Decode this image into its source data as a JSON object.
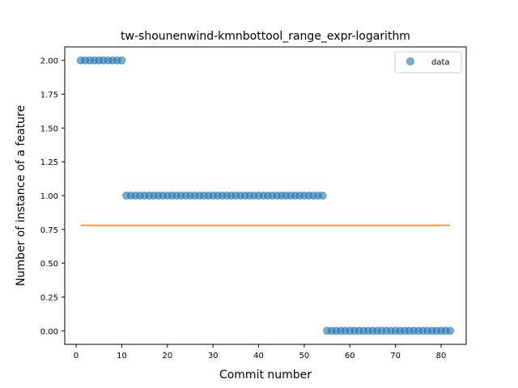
{
  "chart_data": {
    "type": "scatter",
    "title": "tw-shounenwind-kmnbottool_range_expr-logarithm",
    "xlabel": "Commit number",
    "ylabel": "Number of instance of a feature",
    "xlim": [
      -2.5,
      85.5
    ],
    "ylim": [
      -0.1,
      2.1
    ],
    "xticks": [
      0,
      10,
      20,
      30,
      40,
      50,
      60,
      70,
      80
    ],
    "yticks": [
      0.0,
      0.25,
      0.5,
      0.75,
      1.0,
      1.25,
      1.5,
      1.75,
      2.0
    ],
    "ytick_labels": [
      "0.00",
      "0.25",
      "0.50",
      "0.75",
      "1.00",
      "1.25",
      "1.50",
      "1.75",
      "2.00"
    ],
    "grid": false,
    "legend": {
      "position": "top-right",
      "entries": [
        "data"
      ]
    },
    "series": [
      {
        "name": "data",
        "kind": "scatter",
        "color": "#1f77b4",
        "x": [
          1,
          2,
          3,
          4,
          5,
          6,
          7,
          8,
          9,
          10,
          11,
          12,
          13,
          14,
          15,
          16,
          17,
          18,
          19,
          20,
          21,
          22,
          23,
          24,
          25,
          26,
          27,
          28,
          29,
          30,
          31,
          32,
          33,
          34,
          35,
          36,
          37,
          38,
          39,
          40,
          41,
          42,
          43,
          44,
          45,
          46,
          47,
          48,
          49,
          50,
          51,
          52,
          53,
          54,
          55,
          56,
          57,
          58,
          59,
          60,
          61,
          62,
          63,
          64,
          65,
          66,
          67,
          68,
          69,
          70,
          71,
          72,
          73,
          74,
          75,
          76,
          77,
          78,
          79,
          80,
          81,
          82
        ],
        "y": [
          2,
          2,
          2,
          2,
          2,
          2,
          2,
          2,
          2,
          2,
          1,
          1,
          1,
          1,
          1,
          1,
          1,
          1,
          1,
          1,
          1,
          1,
          1,
          1,
          1,
          1,
          1,
          1,
          1,
          1,
          1,
          1,
          1,
          1,
          1,
          1,
          1,
          1,
          1,
          1,
          1,
          1,
          1,
          1,
          1,
          1,
          1,
          1,
          1,
          1,
          1,
          1,
          1,
          1,
          0,
          0,
          0,
          0,
          0,
          0,
          0,
          0,
          0,
          0,
          0,
          0,
          0,
          0,
          0,
          0,
          0,
          0,
          0,
          0,
          0,
          0,
          0,
          0,
          0,
          0,
          0,
          0
        ]
      },
      {
        "kind": "line",
        "color": "#ff7f0e",
        "x": [
          1,
          82
        ],
        "y": [
          0.78,
          0.78
        ]
      }
    ]
  }
}
